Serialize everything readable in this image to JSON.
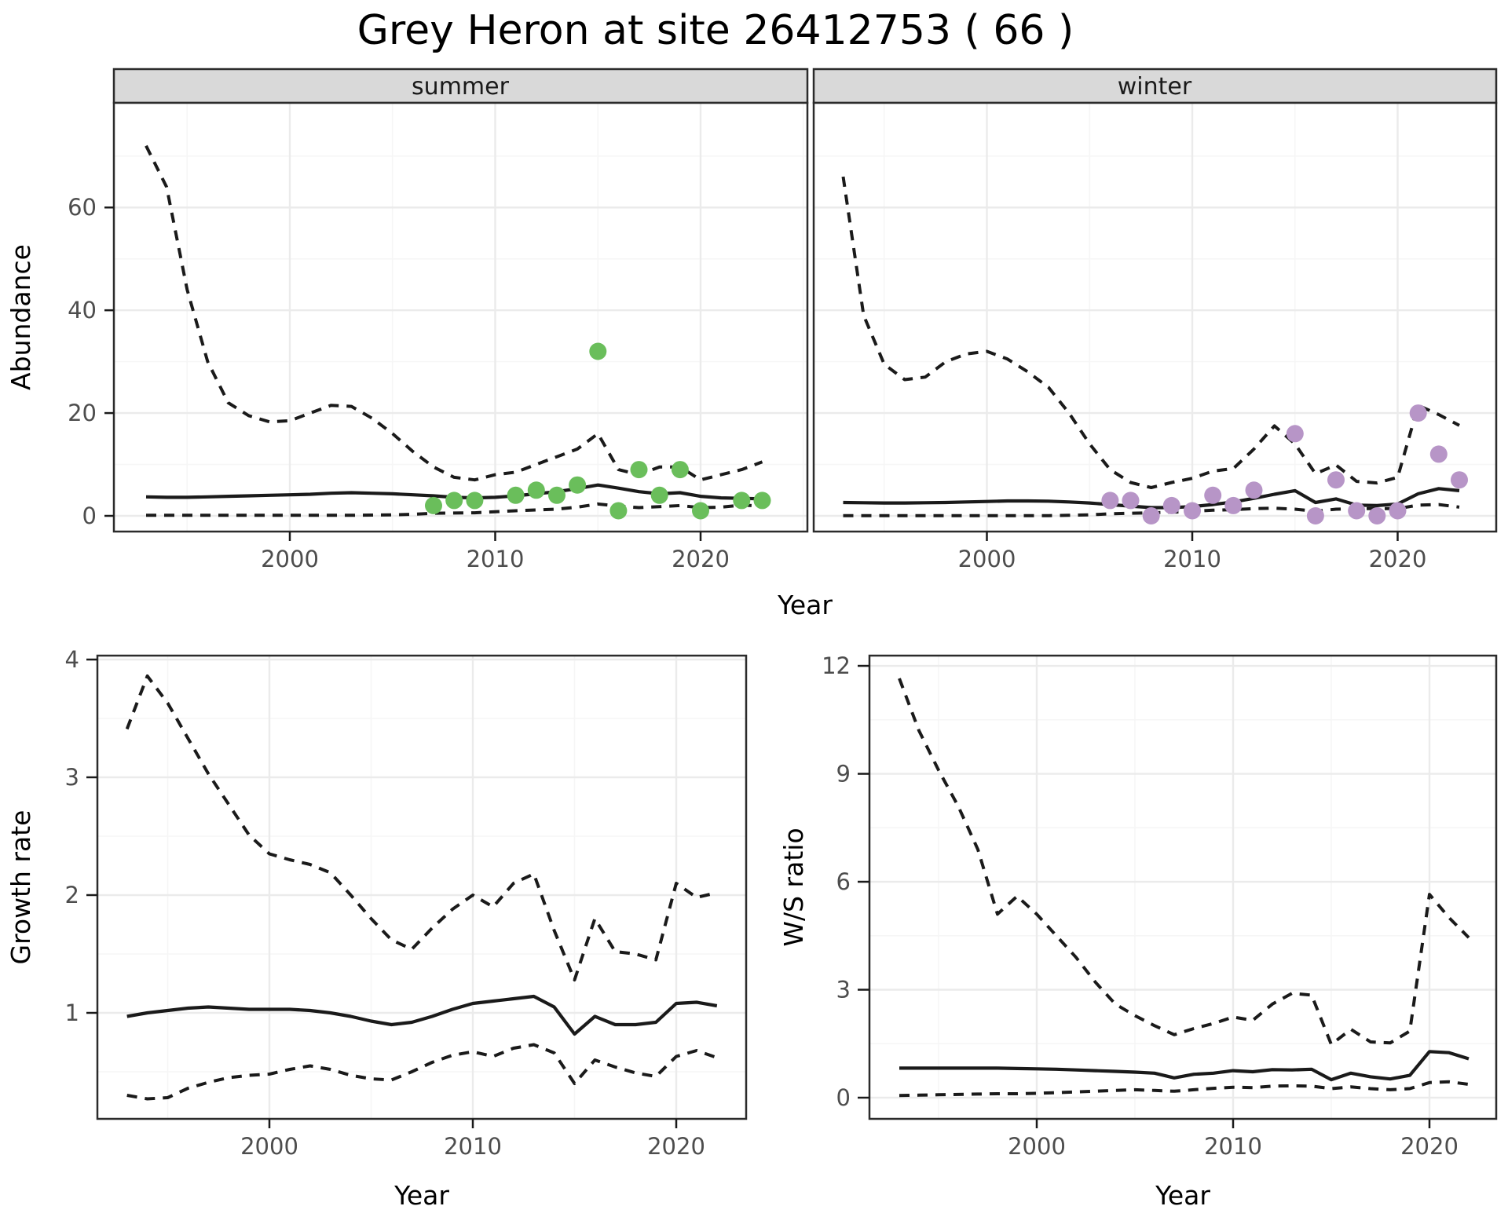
{
  "title": "Grey Heron at site 26412753 ( 66 )",
  "shared_x_label": "Year",
  "colors": {
    "summer_point": "#6ABE5B",
    "winter_point": "#B795C7",
    "line": "#1a1a1a",
    "grid_major": "#EBEBEB",
    "grid_minor": "#F6F6F6",
    "strip_fill": "#D9D9D9",
    "panel_border": "#2b2b2b",
    "tick_text": "#4d4d4d"
  },
  "chart_data": [
    {
      "id": "abundance-summer",
      "type": "line",
      "facet": "summer",
      "ylabel": "Abundance",
      "xlabel": "Year",
      "x_ticks": [
        2000,
        2010,
        2020
      ],
      "x_minor_ticks": [
        1995,
        2005,
        2015,
        2025
      ],
      "y_ticks": [
        0,
        20,
        40,
        60
      ],
      "y_minor_ticks": [
        10,
        30,
        50,
        70
      ],
      "x_range": [
        1991.5,
        2025.2
      ],
      "y_range": [
        -3.1,
        80.3
      ],
      "years": [
        1993,
        1994,
        1995,
        1996,
        1997,
        1998,
        1999,
        2000,
        2001,
        2002,
        2003,
        2004,
        2005,
        2006,
        2007,
        2008,
        2009,
        2010,
        2011,
        2012,
        2013,
        2014,
        2015,
        2016,
        2017,
        2018,
        2019,
        2020,
        2021,
        2022,
        2023
      ],
      "series": [
        {
          "name": "upper_ci",
          "style": "dashed",
          "values": [
            72,
            64,
            44,
            30,
            22,
            19.5,
            18.3,
            18.5,
            20,
            21.5,
            21.3,
            19,
            16,
            12.5,
            9.5,
            7.5,
            7,
            8,
            8.5,
            10,
            11.5,
            13,
            16,
            9,
            8,
            9.5,
            9.5,
            7,
            8,
            9,
            10.5
          ]
        },
        {
          "name": "median",
          "style": "solid",
          "values": [
            3.7,
            3.6,
            3.6,
            3.7,
            3.8,
            3.9,
            4.0,
            4.1,
            4.2,
            4.4,
            4.5,
            4.4,
            4.3,
            4.1,
            3.9,
            3.6,
            3.5,
            3.6,
            3.9,
            4.3,
            4.7,
            5.3,
            6.0,
            5.4,
            4.7,
            4.3,
            4.5,
            3.8,
            3.5,
            3.4,
            3.3
          ]
        },
        {
          "name": "lower_ci",
          "style": "dashed",
          "values": [
            0.1,
            0.1,
            0.1,
            0.1,
            0.1,
            0.1,
            0.1,
            0.1,
            0.1,
            0.1,
            0.1,
            0.15,
            0.2,
            0.3,
            0.5,
            0.55,
            0.6,
            0.8,
            1.0,
            1.15,
            1.3,
            1.7,
            2.3,
            1.9,
            1.6,
            1.8,
            2.0,
            1.6,
            1.7,
            2.1,
            1.9
          ]
        }
      ],
      "points": {
        "name": "observed_counts",
        "color_key": "summer_point",
        "years": [
          2007,
          2008,
          2009,
          2011,
          2012,
          2013,
          2014,
          2015,
          2016,
          2017,
          2018,
          2019,
          2020,
          2022,
          2023
        ],
        "values": [
          2,
          3,
          3,
          4,
          5,
          4,
          6,
          32,
          1,
          9,
          4,
          9,
          1,
          3,
          3
        ]
      }
    },
    {
      "id": "abundance-winter",
      "type": "line",
      "facet": "winter",
      "ylabel": "Abundance",
      "xlabel": "Year",
      "x_ticks": [
        2000,
        2010,
        2020
      ],
      "x_minor_ticks": [
        1995,
        2005,
        2015,
        2025
      ],
      "y_ticks": [
        0,
        20,
        40,
        60
      ],
      "y_minor_ticks": [
        10,
        30,
        50,
        70
      ],
      "x_range": [
        1991.5,
        2024.8
      ],
      "y_range": [
        -3.1,
        80.3
      ],
      "years": [
        1993,
        1994,
        1995,
        1996,
        1997,
        1998,
        1999,
        2000,
        2001,
        2002,
        2003,
        2004,
        2005,
        2006,
        2007,
        2008,
        2009,
        2010,
        2011,
        2012,
        2013,
        2014,
        2015,
        2016,
        2017,
        2018,
        2019,
        2020,
        2021,
        2022,
        2023
      ],
      "series": [
        {
          "name": "upper_ci",
          "style": "dashed",
          "values": [
            66,
            39,
            29.5,
            26.5,
            27,
            30,
            31.5,
            32,
            30.5,
            28,
            25,
            20,
            14,
            9,
            6.5,
            5.5,
            6.5,
            7.3,
            8.7,
            9.2,
            13,
            17.5,
            14,
            8.2,
            9.9,
            6.7,
            6.4,
            7.5,
            21.5,
            19.7,
            17.6
          ]
        },
        {
          "name": "median",
          "style": "solid",
          "values": [
            2.6,
            2.55,
            2.5,
            2.5,
            2.55,
            2.6,
            2.7,
            2.8,
            2.9,
            2.9,
            2.85,
            2.7,
            2.5,
            2.2,
            1.9,
            1.6,
            1.6,
            1.8,
            2.2,
            2.7,
            3.4,
            4.2,
            4.9,
            2.6,
            3.3,
            2.1,
            2.0,
            2.3,
            4.3,
            5.3,
            4.9
          ]
        },
        {
          "name": "lower_ci",
          "style": "dashed",
          "values": [
            0.05,
            0.05,
            0.05,
            0.05,
            0.05,
            0.05,
            0.05,
            0.05,
            0.05,
            0.05,
            0.05,
            0.1,
            0.2,
            0.4,
            0.5,
            0.6,
            0.7,
            0.9,
            1.1,
            1.2,
            1.4,
            1.5,
            1.3,
            0.9,
            1.3,
            1.4,
            1.4,
            1.4,
            2.1,
            2.2,
            1.7
          ]
        }
      ],
      "points": {
        "name": "observed_counts",
        "color_key": "winter_point",
        "years": [
          2006,
          2007,
          2008,
          2009,
          2010,
          2011,
          2012,
          2013,
          2015,
          2016,
          2017,
          2018,
          2019,
          2020,
          2021,
          2022,
          2023
        ],
        "values": [
          3,
          3,
          0,
          2,
          1,
          4,
          2,
          5,
          16,
          0,
          7,
          1,
          0,
          1,
          20,
          12,
          7
        ]
      }
    },
    {
      "id": "growth-rate",
      "type": "line",
      "facet": null,
      "ylabel": "Growth rate",
      "xlabel": "Year",
      "x_ticks": [
        2000,
        2010,
        2020
      ],
      "x_minor_ticks": [
        1995,
        2005,
        2015
      ],
      "y_ticks": [
        1,
        2,
        3,
        4
      ],
      "y_minor_ticks": [
        0.5,
        1.5,
        2.5,
        3.5
      ],
      "x_range": [
        1991.5,
        2023.5
      ],
      "y_range": [
        0.1,
        4.03
      ],
      "years": [
        1993,
        1994,
        1995,
        1996,
        1997,
        1998,
        1999,
        2000,
        2001,
        2002,
        2003,
        2004,
        2005,
        2006,
        2007,
        2008,
        2009,
        2010,
        2011,
        2012,
        2013,
        2014,
        2015,
        2016,
        2017,
        2018,
        2019,
        2020,
        2021,
        2022
      ],
      "series": [
        {
          "name": "upper_ci",
          "style": "dashed",
          "values": [
            3.41,
            3.86,
            3.63,
            3.33,
            3.03,
            2.77,
            2.51,
            2.35,
            2.3,
            2.26,
            2.19,
            2.0,
            1.8,
            1.62,
            1.54,
            1.72,
            1.88,
            2.0,
            1.9,
            2.1,
            2.18,
            1.7,
            1.28,
            1.8,
            1.52,
            1.5,
            1.45,
            2.1,
            1.98,
            2.02
          ]
        },
        {
          "name": "median",
          "style": "solid",
          "values": [
            0.97,
            1.0,
            1.02,
            1.04,
            1.05,
            1.04,
            1.03,
            1.03,
            1.03,
            1.02,
            1.0,
            0.97,
            0.93,
            0.9,
            0.92,
            0.97,
            1.03,
            1.08,
            1.1,
            1.12,
            1.14,
            1.05,
            0.82,
            0.97,
            0.9,
            0.9,
            0.92,
            1.08,
            1.09,
            1.06
          ]
        },
        {
          "name": "lower_ci",
          "style": "dashed",
          "values": [
            0.3,
            0.27,
            0.28,
            0.36,
            0.41,
            0.45,
            0.47,
            0.48,
            0.52,
            0.55,
            0.52,
            0.47,
            0.44,
            0.43,
            0.5,
            0.58,
            0.64,
            0.67,
            0.63,
            0.7,
            0.73,
            0.66,
            0.4,
            0.6,
            0.54,
            0.49,
            0.46,
            0.63,
            0.68,
            0.62
          ]
        }
      ],
      "points": null
    },
    {
      "id": "ws-ratio",
      "type": "line",
      "facet": null,
      "ylabel": "W/S ratio",
      "xlabel": "Year",
      "x_ticks": [
        2000,
        2010,
        2020
      ],
      "x_minor_ticks": [
        1995,
        2005,
        2015
      ],
      "y_ticks": [
        0,
        3,
        6,
        9,
        12
      ],
      "y_minor_ticks": [
        1.5,
        4.5,
        7.5,
        10.5
      ],
      "x_range": [
        1991.5,
        2023.5
      ],
      "y_range": [
        -0.59,
        12.37
      ],
      "years": [
        1993,
        1994,
        1995,
        1996,
        1997,
        1998,
        1999,
        2000,
        2001,
        2002,
        2003,
        2004,
        2005,
        2006,
        2007,
        2008,
        2009,
        2010,
        2011,
        2012,
        2013,
        2014,
        2015,
        2016,
        2017,
        2018,
        2019,
        2020,
        2021,
        2022
      ],
      "series": [
        {
          "name": "upper_ci",
          "style": "dashed",
          "values": [
            11.65,
            10.2,
            9.1,
            8.1,
            6.9,
            5.1,
            5.6,
            5.1,
            4.5,
            3.9,
            3.2,
            2.6,
            2.28,
            2.0,
            1.75,
            1.92,
            2.06,
            2.24,
            2.15,
            2.6,
            2.9,
            2.85,
            1.48,
            1.9,
            1.55,
            1.52,
            1.85,
            5.65,
            5.0,
            4.45
          ]
        },
        {
          "name": "median",
          "style": "solid",
          "values": [
            0.82,
            0.82,
            0.82,
            0.82,
            0.82,
            0.82,
            0.81,
            0.8,
            0.79,
            0.77,
            0.75,
            0.73,
            0.71,
            0.68,
            0.55,
            0.65,
            0.68,
            0.75,
            0.72,
            0.78,
            0.77,
            0.79,
            0.5,
            0.68,
            0.58,
            0.52,
            0.62,
            1.28,
            1.25,
            1.08
          ]
        },
        {
          "name": "lower_ci",
          "style": "dashed",
          "values": [
            0.06,
            0.07,
            0.08,
            0.09,
            0.1,
            0.11,
            0.11,
            0.12,
            0.14,
            0.16,
            0.18,
            0.2,
            0.22,
            0.2,
            0.18,
            0.22,
            0.26,
            0.29,
            0.28,
            0.32,
            0.33,
            0.32,
            0.25,
            0.3,
            0.25,
            0.22,
            0.25,
            0.42,
            0.44,
            0.37
          ]
        }
      ],
      "points": null
    }
  ]
}
